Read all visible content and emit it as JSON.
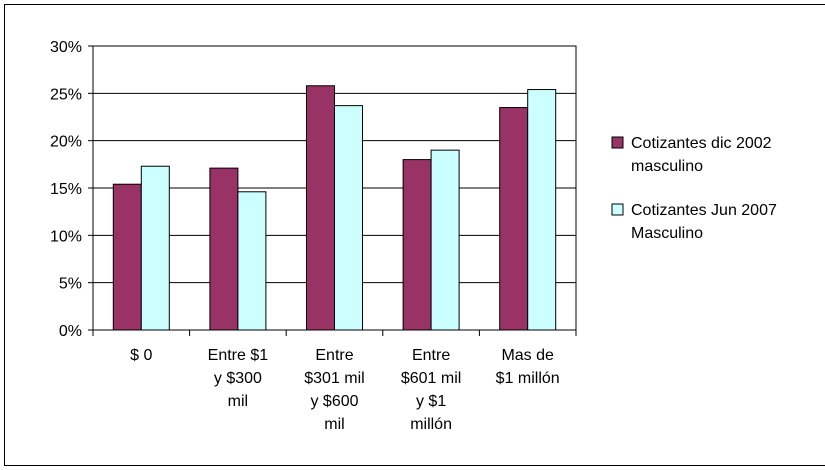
{
  "chart_data": {
    "type": "bar",
    "title": "",
    "xlabel": "",
    "ylabel": "",
    "ylim": [
      0,
      0.3
    ],
    "yticks": [
      "0%",
      "5%",
      "10%",
      "15%",
      "20%",
      "25%",
      "30%"
    ],
    "ytick_values": [
      0,
      0.05,
      0.1,
      0.15,
      0.2,
      0.25,
      0.3
    ],
    "categories": [
      [
        "$ 0"
      ],
      [
        "Entre $1",
        "y $300",
        "mil"
      ],
      [
        "Entre",
        "$301 mil",
        "y $600",
        "mil"
      ],
      [
        "Entre",
        "$601 mil",
        "y $1",
        "millón"
      ],
      [
        "Mas de",
        "$1 millón"
      ]
    ],
    "series": [
      {
        "name": [
          "Cotizantes dic 2002",
          "masculino"
        ],
        "color": "#993366",
        "values": [
          0.154,
          0.171,
          0.258,
          0.18,
          0.235
        ]
      },
      {
        "name": [
          "Cotizantes Jun 2007",
          "Masculino"
        ],
        "color": "#ccffff",
        "values": [
          0.173,
          0.146,
          0.237,
          0.19,
          0.254
        ]
      }
    ],
    "grid": true,
    "legend_position": "right"
  }
}
